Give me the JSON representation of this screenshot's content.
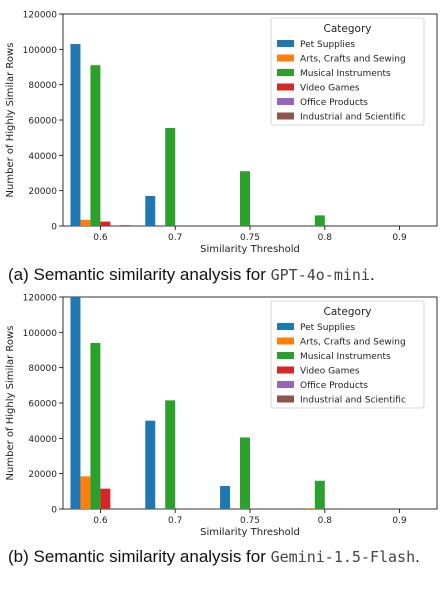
{
  "chart_data": [
    {
      "type": "bar",
      "categories": [
        "0.6",
        "0.7",
        "0.75",
        "0.8",
        "0.9"
      ],
      "xlabel": "Similarity Threshold",
      "ylabel": "Number of Highly Similar Rows",
      "ylim": [
        0,
        120000
      ],
      "yticks": [
        0,
        20000,
        40000,
        60000,
        80000,
        100000,
        120000
      ],
      "legend_title": "Category",
      "legend_position": "top-right",
      "series": [
        {
          "name": "Pet Supplies",
          "color": "#1f77b4",
          "values": [
            103000,
            17000,
            0,
            0,
            0
          ]
        },
        {
          "name": "Arts, Crafts and Sewing",
          "color": "#ff7f0e",
          "values": [
            3500,
            0,
            0,
            0,
            0
          ]
        },
        {
          "name": "Musical Instruments",
          "color": "#2ca02c",
          "values": [
            91000,
            55500,
            31000,
            6000,
            0
          ]
        },
        {
          "name": "Video Games",
          "color": "#d62728",
          "values": [
            2500,
            0,
            0,
            0,
            0
          ]
        },
        {
          "name": "Office Products",
          "color": "#9467bd",
          "values": [
            0,
            0,
            0,
            0,
            0
          ]
        },
        {
          "name": "Industrial and Scientific",
          "color": "#8c564b",
          "values": [
            500,
            0,
            0,
            0,
            0
          ]
        }
      ]
    },
    {
      "type": "bar",
      "categories": [
        "0.6",
        "0.7",
        "0.75",
        "0.8",
        "0.9"
      ],
      "xlabel": "Similarity Threshold",
      "ylabel": "Number of Highly Similar Rows",
      "ylim": [
        0,
        120000
      ],
      "yticks": [
        0,
        20000,
        40000,
        60000,
        80000,
        100000,
        120000
      ],
      "legend_title": "Category",
      "legend_position": "top-right",
      "series": [
        {
          "name": "Pet Supplies",
          "color": "#1f77b4",
          "values": [
            120000,
            50000,
            13000,
            0,
            0
          ]
        },
        {
          "name": "Arts, Crafts and Sewing",
          "color": "#ff7f0e",
          "values": [
            18500,
            0,
            0,
            500,
            0
          ]
        },
        {
          "name": "Musical Instruments",
          "color": "#2ca02c",
          "values": [
            94000,
            61500,
            40500,
            16000,
            0
          ]
        },
        {
          "name": "Video Games",
          "color": "#d62728",
          "values": [
            11500,
            0,
            0,
            0,
            0
          ]
        },
        {
          "name": "Office Products",
          "color": "#9467bd",
          "values": [
            0,
            0,
            0,
            0,
            0
          ]
        },
        {
          "name": "Industrial and Scientific",
          "color": "#8c564b",
          "values": [
            0,
            0,
            0,
            0,
            0
          ]
        }
      ]
    }
  ],
  "captions": [
    {
      "prefix": "(a) Semantic similarity analysis for ",
      "model": "GPT-4o-mini",
      "suffix": "."
    },
    {
      "prefix": "(b) Semantic similarity analysis for ",
      "model": "Gemini-1.5-Flash",
      "suffix": "."
    }
  ]
}
